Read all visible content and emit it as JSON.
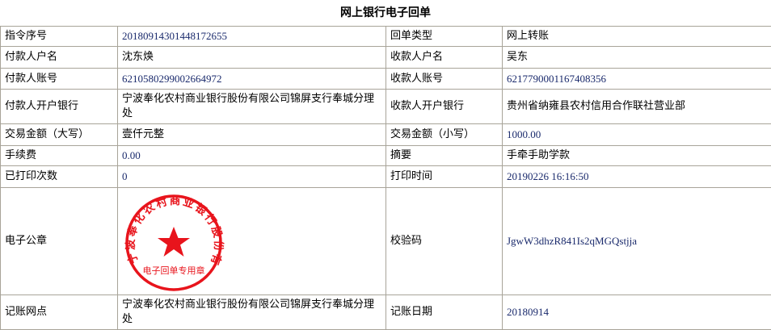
{
  "title": "网上银行电子回单",
  "rows": [
    {
      "l1": "指令序号",
      "v1": "2018091430144817265​5",
      "l2": "回单类型",
      "v2": "网上转账"
    },
    {
      "l1": "付款人户名",
      "v1": "沈东焕",
      "l2": "收款人户名",
      "v2": "吴东"
    },
    {
      "l1": "付款人账号",
      "v1": "6210580299002664972",
      "l2": "收款人账号",
      "v2": "6217790001167408356"
    },
    {
      "l1": "付款人开户银行",
      "v1": "宁波奉化农村商业银行股份有限公司锦屏支行奉城分理处",
      "l2": "收款人开户银行",
      "v2": "贵州省纳雍县农村信用合作联社营业部"
    },
    {
      "l1": "交易金额（大写）",
      "v1": "壹仟元整",
      "l2": "交易金额（小写）",
      "v2": "1000.00"
    },
    {
      "l1": "手续费",
      "v1": "0.00",
      "l2": "摘要",
      "v2": "手牵手助学款"
    },
    {
      "l1": "已打印次数",
      "v1": "0",
      "l2": "打印时间",
      "v2": "20190226 16:16:50"
    },
    {
      "l1": "电子公章",
      "l2": "校验码",
      "v2": "JgwW3dhzR841Is2qMGQstjja"
    },
    {
      "l1": "记账网点",
      "v1": "宁波奉化农村商业银行股份有限公司锦屏支行奉城分理处",
      "l2": "记账日期",
      "v2": "20180914"
    }
  ],
  "seal": {
    "ring_text": "宁波奉化农村商业银行股份有限公司",
    "bottom_text": "电子回单专用章",
    "color": "#e8141c",
    "icon": "star-icon"
  }
}
